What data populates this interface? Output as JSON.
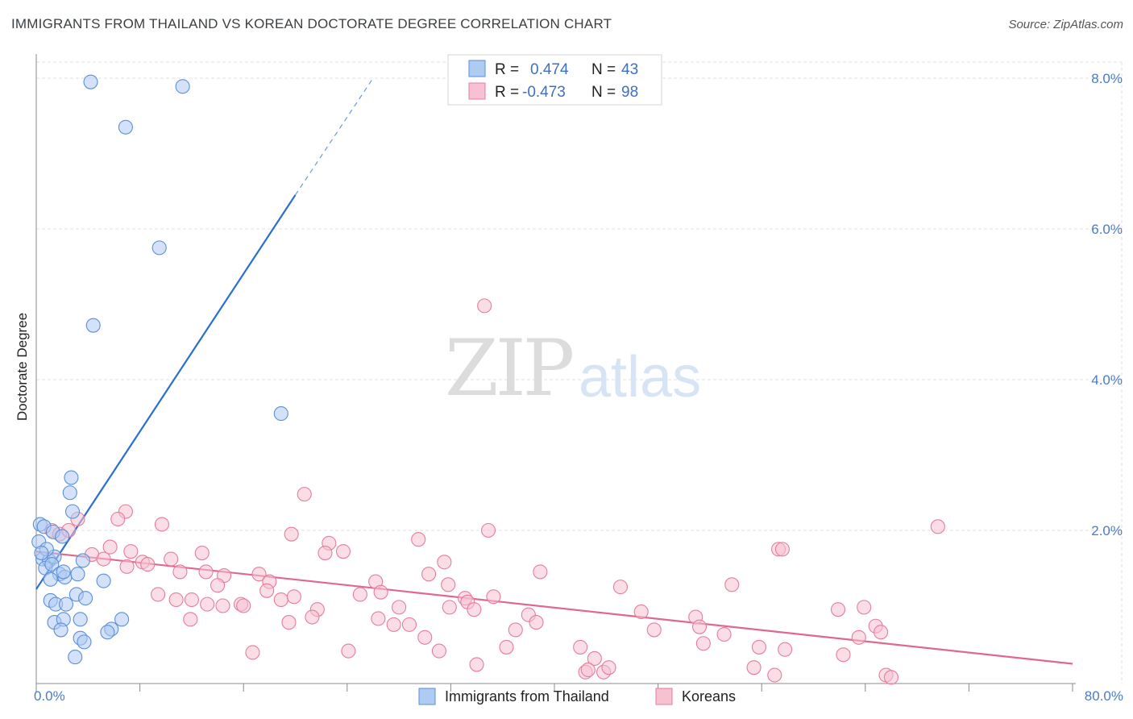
{
  "title": "IMMIGRANTS FROM THAILAND VS KOREAN DOCTORATE DEGREE CORRELATION CHART",
  "source": "Source: ZipAtlas.com",
  "watermark": {
    "zip": "ZIP",
    "atlas": "atlas"
  },
  "colors": {
    "blue": "#5b8fd8",
    "blue_fill": "#aecbf2",
    "blue_line": "#2a6fd0",
    "pink": "#e57ca0",
    "pink_fill": "#f7c1d2",
    "pink_line": "#e0688f",
    "grid": "#e2e2e2",
    "tick_label": "#4a7bc8"
  },
  "legend": {
    "rows": [
      {
        "r_label": "R =",
        "r_value": "0.474",
        "n_label": "N =",
        "n_value": "43",
        "series": "thailand"
      },
      {
        "r_label": "R =",
        "r_value": "-0.473",
        "n_label": "N =",
        "n_value": "98",
        "series": "koreans"
      }
    ]
  },
  "chart_data": {
    "type": "scatter",
    "title": "IMMIGRANTS FROM THAILAND VS KOREAN DOCTORATE DEGREE CORRELATION CHART",
    "xlabel": "",
    "ylabel": "Doctorate Degree",
    "xlim": [
      0,
      80
    ],
    "ylim": [
      0,
      8.3
    ],
    "x_tick_labels": [
      "0.0%",
      "80.0%"
    ],
    "y_ticks": [
      2,
      4,
      6,
      8
    ],
    "y_tick_labels": [
      "2.0%",
      "4.0%",
      "6.0%",
      "8.0%"
    ],
    "grid": true,
    "legend_position": "top-center",
    "series": [
      {
        "name": "Immigrants from Thailand",
        "color": "#5b8fd8",
        "r": 0.474,
        "n": 43,
        "trend": {
          "x1": 0,
          "y1": 1.22,
          "x2": 20,
          "y2": 6.45,
          "dashed_to_x": 26,
          "dashed_to_y": 8.0
        },
        "points": [
          [
            4.2,
            7.95
          ],
          [
            11.3,
            7.89
          ],
          [
            6.9,
            7.35
          ],
          [
            9.5,
            5.75
          ],
          [
            4.4,
            4.72
          ],
          [
            18.9,
            3.55
          ],
          [
            2.7,
            2.7
          ],
          [
            2.6,
            2.5
          ],
          [
            2.8,
            2.25
          ],
          [
            0.3,
            2.08
          ],
          [
            0.6,
            2.05
          ],
          [
            1.3,
            1.98
          ],
          [
            0.5,
            1.62
          ],
          [
            1.0,
            1.6
          ],
          [
            1.4,
            1.65
          ],
          [
            0.7,
            1.5
          ],
          [
            1.2,
            1.55
          ],
          [
            3.6,
            1.6
          ],
          [
            1.8,
            1.42
          ],
          [
            2.2,
            1.38
          ],
          [
            3.2,
            1.42
          ],
          [
            1.1,
            1.35
          ],
          [
            5.2,
            1.33
          ],
          [
            2.1,
            1.45
          ],
          [
            3.1,
            1.15
          ],
          [
            3.8,
            1.1
          ],
          [
            1.1,
            1.07
          ],
          [
            1.5,
            1.02
          ],
          [
            2.3,
            1.02
          ],
          [
            1.4,
            0.78
          ],
          [
            2.1,
            0.82
          ],
          [
            3.4,
            0.82
          ],
          [
            6.6,
            0.82
          ],
          [
            1.9,
            0.68
          ],
          [
            5.8,
            0.69
          ],
          [
            5.5,
            0.65
          ],
          [
            3.4,
            0.57
          ],
          [
            3.7,
            0.52
          ],
          [
            3.0,
            0.32
          ],
          [
            0.2,
            1.85
          ],
          [
            0.8,
            1.75
          ],
          [
            0.4,
            1.7
          ],
          [
            2.0,
            1.92
          ]
        ]
      },
      {
        "name": "Koreans",
        "color": "#e57ca0",
        "r": -0.473,
        "n": 98,
        "trend": {
          "x1": 0,
          "y1": 1.72,
          "x2": 80,
          "y2": 0.23
        },
        "points": [
          [
            1.2,
            2.0
          ],
          [
            1.8,
            1.95
          ],
          [
            2.5,
            2.0
          ],
          [
            3.2,
            2.15
          ],
          [
            6.9,
            2.25
          ],
          [
            6.3,
            2.15
          ],
          [
            9.7,
            2.08
          ],
          [
            20.7,
            2.48
          ],
          [
            34.6,
            4.98
          ],
          [
            19.7,
            1.95
          ],
          [
            22.6,
            1.83
          ],
          [
            23.7,
            1.72
          ],
          [
            22.3,
            1.7
          ],
          [
            29.5,
            1.88
          ],
          [
            34.9,
            2.0
          ],
          [
            57.3,
            1.75
          ],
          [
            57.6,
            1.75
          ],
          [
            69.6,
            2.05
          ],
          [
            4.3,
            1.68
          ],
          [
            5.7,
            1.78
          ],
          [
            7.3,
            1.72
          ],
          [
            5.2,
            1.62
          ],
          [
            7.0,
            1.52
          ],
          [
            8.2,
            1.58
          ],
          [
            8.6,
            1.55
          ],
          [
            10.4,
            1.62
          ],
          [
            11.1,
            1.45
          ],
          [
            12.8,
            1.7
          ],
          [
            13.1,
            1.45
          ],
          [
            14.5,
            1.4
          ],
          [
            17.2,
            1.42
          ],
          [
            18.0,
            1.32
          ],
          [
            26.2,
            1.32
          ],
          [
            26.6,
            1.18
          ],
          [
            30.3,
            1.42
          ],
          [
            31.5,
            1.58
          ],
          [
            31.8,
            1.28
          ],
          [
            33.1,
            1.1
          ],
          [
            38.9,
            1.45
          ],
          [
            15.8,
            1.02
          ],
          [
            14.0,
            1.27
          ],
          [
            14.4,
            1.0
          ],
          [
            16.0,
            1.0
          ],
          [
            17.8,
            1.2
          ],
          [
            18.9,
            1.08
          ],
          [
            19.9,
            1.12
          ],
          [
            13.2,
            1.02
          ],
          [
            9.4,
            1.15
          ],
          [
            10.8,
            1.08
          ],
          [
            12.0,
            1.08
          ],
          [
            11.9,
            0.82
          ],
          [
            19.5,
            0.78
          ],
          [
            21.7,
            0.95
          ],
          [
            21.3,
            0.85
          ],
          [
            25.0,
            1.15
          ],
          [
            26.4,
            0.83
          ],
          [
            27.6,
            0.75
          ],
          [
            28.0,
            0.98
          ],
          [
            28.8,
            0.75
          ],
          [
            30.0,
            0.58
          ],
          [
            31.9,
            0.98
          ],
          [
            33.3,
            1.05
          ],
          [
            33.8,
            0.95
          ],
          [
            35.3,
            1.12
          ],
          [
            37.0,
            0.68
          ],
          [
            38.0,
            0.88
          ],
          [
            38.6,
            0.78
          ],
          [
            45.1,
            1.25
          ],
          [
            46.7,
            0.92
          ],
          [
            47.7,
            0.68
          ],
          [
            50.9,
            0.85
          ],
          [
            51.2,
            0.72
          ],
          [
            51.5,
            0.5
          ],
          [
            53.7,
            1.28
          ],
          [
            53.1,
            0.62
          ],
          [
            55.8,
            0.45
          ],
          [
            57.8,
            0.42
          ],
          [
            62.3,
            0.35
          ],
          [
            61.9,
            0.95
          ],
          [
            63.5,
            0.58
          ],
          [
            63.9,
            0.98
          ],
          [
            64.8,
            0.73
          ],
          [
            65.2,
            0.65
          ],
          [
            16.7,
            0.38
          ],
          [
            24.1,
            0.4
          ],
          [
            31.1,
            0.4
          ],
          [
            34.0,
            0.22
          ],
          [
            36.3,
            0.45
          ],
          [
            42.0,
            0.45
          ],
          [
            42.4,
            0.12
          ],
          [
            43.1,
            0.3
          ],
          [
            42.6,
            0.15
          ],
          [
            43.8,
            0.12
          ],
          [
            44.2,
            0.18
          ],
          [
            55.4,
            0.18
          ],
          [
            57.0,
            0.08
          ],
          [
            65.6,
            0.08
          ],
          [
            66.0,
            0.05
          ]
        ]
      }
    ]
  },
  "bottom_legend": [
    {
      "label": "Immigrants from Thailand",
      "series": "thailand"
    },
    {
      "label": "Koreans",
      "series": "koreans"
    }
  ]
}
